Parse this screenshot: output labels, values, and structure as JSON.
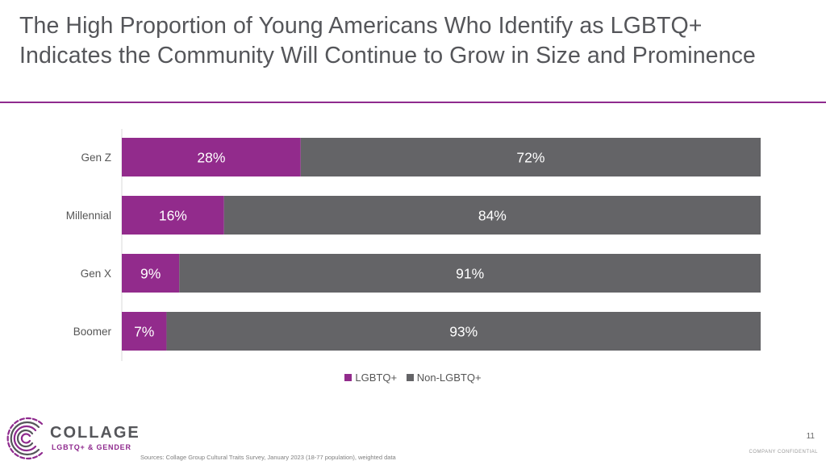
{
  "title": {
    "line1": "The High Proportion of Young Americans Who Identify as LGBTQ+",
    "line2": "Indicates the Community Will Continue to Grow in Size and Prominence"
  },
  "chart_data": {
    "type": "bar",
    "orientation": "horizontal",
    "stacked": true,
    "categories": [
      "Gen Z",
      "Millennial",
      "Gen X",
      "Boomer"
    ],
    "series": [
      {
        "name": "LGBTQ+",
        "values": [
          28,
          16,
          9,
          7
        ],
        "labels": [
          "28%",
          "16%",
          "9%",
          "7%"
        ],
        "color": "#922b8c"
      },
      {
        "name": "Non-LGBTQ+",
        "values": [
          72,
          84,
          91,
          93
        ],
        "labels": [
          "72%",
          "84%",
          "91%",
          "93%"
        ],
        "color": "#646467"
      }
    ],
    "xlim": [
      0,
      100
    ],
    "grid": false,
    "legend_position": "bottom"
  },
  "legend": {
    "items": [
      "LGBTQ+",
      "Non-LGBTQ+"
    ]
  },
  "logo": {
    "word": "COLLAGE",
    "sub": "LGBTQ+ & GENDER"
  },
  "footer": {
    "source": "Sources: Collage Group Cultural Traits Survey, January 2023 (18-77 population), weighted data",
    "page_number": "11",
    "confidential": "COMPANY CONFIDENTIAL"
  },
  "colors": {
    "accent": "#922b8c",
    "rule": "#8f2a8e",
    "neutral_bar": "#646467",
    "title_text": "#55565a"
  }
}
